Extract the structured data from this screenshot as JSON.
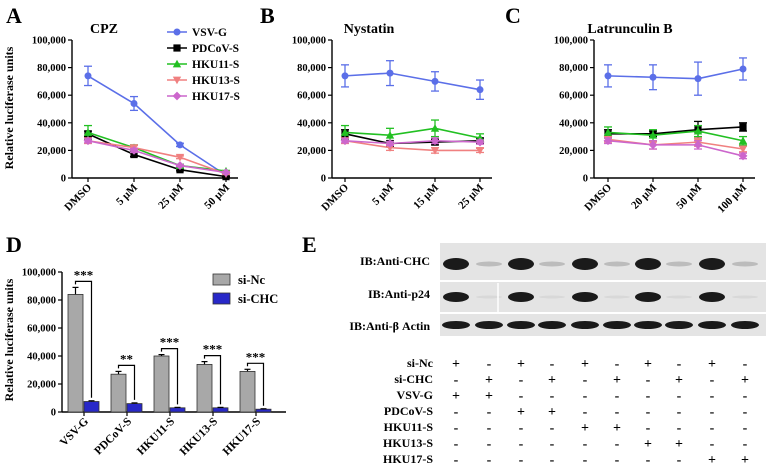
{
  "panel_labels": {
    "A": "A",
    "B": "B",
    "C": "C",
    "D": "D",
    "E": "E"
  },
  "legend_abc": [
    "VSV-G",
    "PDCoV-S",
    "HKU11-S",
    "HKU13-S",
    "HKU17-S"
  ],
  "series_colors": {
    "VSV-G": "#5b6fe8",
    "PDCoV-S": "#000000",
    "HKU11-S": "#22c022",
    "HKU13-S": "#f08080",
    "HKU17-S": "#cc66cc"
  },
  "chart_data": [
    {
      "panel": "A",
      "type": "line",
      "title": "CPZ",
      "ylabel": "Relative luciferase units",
      "ylim": [
        0,
        100000
      ],
      "yticks": [
        "0",
        "20,000",
        "40,000",
        "60,000",
        "80,000",
        "100,000"
      ],
      "categories": [
        "DMSO",
        "5 μM",
        "25 μM",
        "50 μM"
      ],
      "series": [
        {
          "name": "VSV-G",
          "values": [
            74000,
            54000,
            24000,
            2000
          ],
          "err": [
            7000,
            5000,
            1200,
            500
          ]
        },
        {
          "name": "PDCoV-S",
          "values": [
            32000,
            17000,
            6000,
            1000
          ],
          "err": [
            2000,
            1500,
            800,
            300
          ]
        },
        {
          "name": "HKU11-S",
          "values": [
            33000,
            22000,
            9000,
            5000
          ],
          "err": [
            5000,
            2000,
            1000,
            500
          ]
        },
        {
          "name": "HKU13-S",
          "values": [
            27000,
            22000,
            15000,
            3000
          ],
          "err": [
            2000,
            1500,
            1000,
            500
          ]
        },
        {
          "name": "HKU17-S",
          "values": [
            27000,
            20000,
            9000,
            4000
          ],
          "err": [
            1500,
            1500,
            800,
            500
          ]
        }
      ]
    },
    {
      "panel": "B",
      "type": "line",
      "title": "Nystatin",
      "ylim": [
        0,
        100000
      ],
      "yticks": [
        "0",
        "20,000",
        "40,000",
        "60,000",
        "80,000",
        "100,000"
      ],
      "categories": [
        "DMSO",
        "5 μM",
        "15 μM",
        "25 μM"
      ],
      "series": [
        {
          "name": "VSV-G",
          "values": [
            74000,
            76000,
            70000,
            64000
          ],
          "err": [
            8000,
            9000,
            7000,
            7000
          ]
        },
        {
          "name": "PDCoV-S",
          "values": [
            32000,
            25000,
            26000,
            27000
          ],
          "err": [
            3000,
            2000,
            2000,
            2000
          ]
        },
        {
          "name": "HKU11-S",
          "values": [
            33000,
            31000,
            36000,
            29000
          ],
          "err": [
            5000,
            5000,
            6000,
            3000
          ]
        },
        {
          "name": "HKU13-S",
          "values": [
            27000,
            22000,
            20000,
            20000
          ],
          "err": [
            2000,
            2000,
            2000,
            1500
          ]
        },
        {
          "name": "HKU17-S",
          "values": [
            27000,
            25000,
            27000,
            26000
          ],
          "err": [
            1500,
            1500,
            2000,
            1500
          ]
        }
      ]
    },
    {
      "panel": "C",
      "type": "line",
      "title": "Latrunculin B",
      "ylim": [
        0,
        100000
      ],
      "yticks": [
        "0",
        "20,000",
        "40,000",
        "60,000",
        "80,000",
        "100,000"
      ],
      "categories": [
        "DMSO",
        "20 μM",
        "50 μM",
        "100 μM"
      ],
      "series": [
        {
          "name": "VSV-G",
          "values": [
            74000,
            73000,
            72000,
            79000
          ],
          "err": [
            8000,
            9000,
            12000,
            8000
          ]
        },
        {
          "name": "PDCoV-S",
          "values": [
            32000,
            32000,
            35000,
            37000
          ],
          "err": [
            3000,
            2000,
            6000,
            3000
          ]
        },
        {
          "name": "HKU11-S",
          "values": [
            33000,
            31000,
            34000,
            27000
          ],
          "err": [
            4000,
            4000,
            4000,
            3000
          ]
        },
        {
          "name": "HKU13-S",
          "values": [
            28000,
            24000,
            26000,
            21000
          ],
          "err": [
            2000,
            3000,
            3000,
            2000
          ]
        },
        {
          "name": "HKU17-S",
          "values": [
            27000,
            24000,
            24000,
            16000
          ],
          "err": [
            2000,
            3000,
            3000,
            2000
          ]
        }
      ]
    },
    {
      "panel": "D",
      "type": "bar",
      "ylabel": "Relative luciferase units",
      "ylim": [
        0,
        100000
      ],
      "yticks": [
        "0",
        "20,000",
        "40,000",
        "60,000",
        "80,000",
        "100,000"
      ],
      "categories": [
        "VSV-G",
        "PDCoV-S",
        "HKU11-S",
        "HKU13-S",
        "HKU17-S"
      ],
      "series": [
        {
          "name": "si-Nc",
          "values": [
            84000,
            27000,
            40000,
            34000,
            29000
          ],
          "err": [
            5000,
            2000,
            1000,
            2000,
            1500
          ],
          "color": "#a8a8a8"
        },
        {
          "name": "si-CHC",
          "values": [
            7500,
            6000,
            3000,
            3000,
            2000
          ],
          "err": [
            500,
            500,
            300,
            300,
            300
          ],
          "color": "#2828c8"
        }
      ],
      "significance": [
        "***",
        "**",
        "***",
        "***",
        "***"
      ]
    }
  ],
  "blot": {
    "labels": [
      "IB:Anti-CHC",
      "IB:Anti-p24",
      "IB:Anti-β Actin"
    ],
    "rows": [
      {
        "name": "si-Nc",
        "marks": [
          "+",
          "-",
          "+",
          "-",
          "+",
          "-",
          "+",
          "-",
          "+",
          "-"
        ]
      },
      {
        "name": "si-CHC",
        "marks": [
          "-",
          "+",
          "-",
          "+",
          "-",
          "+",
          "-",
          "+",
          "-",
          "+"
        ]
      },
      {
        "name": "VSV-G",
        "marks": [
          "+",
          "+",
          "-",
          "-",
          "-",
          "-",
          "-",
          "-",
          "-",
          "-"
        ]
      },
      {
        "name": "PDCoV-S",
        "marks": [
          "-",
          "-",
          "+",
          "+",
          "-",
          "-",
          "-",
          "-",
          "-",
          "-"
        ]
      },
      {
        "name": "HKU11-S",
        "marks": [
          "-",
          "-",
          "-",
          "-",
          "+",
          "+",
          "-",
          "-",
          "-",
          "-"
        ]
      },
      {
        "name": "HKU13-S",
        "marks": [
          "-",
          "-",
          "-",
          "-",
          "-",
          "-",
          "+",
          "+",
          "-",
          "-"
        ]
      },
      {
        "name": "HKU17-S",
        "marks": [
          "-",
          "-",
          "-",
          "-",
          "-",
          "-",
          "-",
          "-",
          "+",
          "+"
        ]
      }
    ]
  }
}
